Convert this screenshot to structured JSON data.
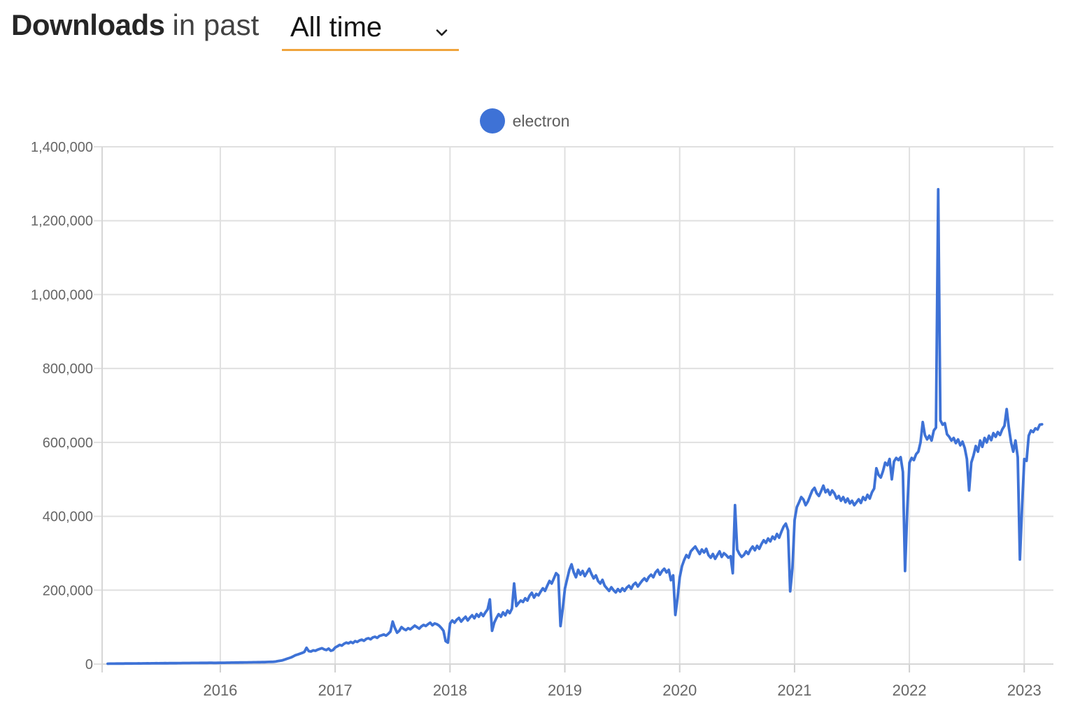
{
  "header": {
    "title": "Downloads",
    "subtitle": "in past",
    "range_select": {
      "value": "All time"
    }
  },
  "legend": {
    "items": [
      {
        "label": "electron",
        "color": "#3E72D6"
      }
    ]
  },
  "chart_data": {
    "type": "line",
    "title": "Downloads in past All time",
    "xlabel": "",
    "ylabel": "",
    "x_unit": "year (weekly npm download counts)",
    "grid": true,
    "legend_position": "top",
    "x_range": [
      2014.971,
      2023.254
    ],
    "y_range": [
      0,
      1400000
    ],
    "x_ticks": [
      2016,
      2017,
      2018,
      2019,
      2020,
      2021,
      2022,
      2023
    ],
    "x_tick_labels": [
      "2016",
      "2017",
      "2018",
      "2019",
      "2020",
      "2021",
      "2022",
      "2023"
    ],
    "y_ticks": [
      0,
      200000,
      400000,
      600000,
      800000,
      1000000,
      1200000,
      1400000
    ],
    "y_tick_labels": [
      "0",
      "200,000",
      "400,000",
      "600,000",
      "800,000",
      "1,000,000",
      "1,200,000",
      "1,400,000"
    ],
    "series": [
      {
        "name": "electron",
        "color": "#3E72D6",
        "x_start": 2015.02,
        "x_step": 0.0192308,
        "values": [
          1000,
          1100,
          1050,
          1200,
          1300,
          1250,
          1400,
          1350,
          1500,
          1450,
          1600,
          1550,
          1700,
          1650,
          1800,
          1750,
          1900,
          1850,
          2000,
          1950,
          2100,
          2050,
          2200,
          2150,
          2300,
          2250,
          2400,
          2350,
          2500,
          2450,
          2600,
          2550,
          2700,
          2650,
          2800,
          2750,
          2900,
          2850,
          3000,
          2950,
          3100,
          3050,
          3200,
          3150,
          3300,
          3250,
          3400,
          3350,
          3300,
          3200,
          3400,
          3400,
          3600,
          3500,
          3800,
          3700,
          4000,
          3900,
          4200,
          4100,
          4400,
          4300,
          4600,
          4500,
          4800,
          4700,
          5000,
          4900,
          5200,
          5100,
          5400,
          5300,
          5600,
          5800,
          6000,
          6300,
          6800,
          8000,
          9000,
          10000,
          12000,
          14000,
          16000,
          18000,
          21000,
          24000,
          26000,
          28000,
          30000,
          33000,
          44000,
          35000,
          34000,
          37000,
          36000,
          39000,
          41000,
          43000,
          40000,
          38000,
          42000,
          36000,
          38000,
          45000,
          48000,
          52000,
          50000,
          55000,
          58000,
          56000,
          60000,
          57000,
          62000,
          60000,
          64000,
          66000,
          63000,
          68000,
          70000,
          67000,
          72000,
          74000,
          71000,
          76000,
          78000,
          80000,
          77000,
          82000,
          88000,
          115000,
          98000,
          85000,
          90000,
          100000,
          95000,
          92000,
          97000,
          94000,
          99000,
          104000,
          100000,
          96000,
          102000,
          106000,
          103000,
          108000,
          112000,
          105000,
          110000,
          108000,
          104000,
          98000,
          90000,
          62000,
          58000,
          110000,
          118000,
          112000,
          120000,
          125000,
          115000,
          122000,
          128000,
          118000,
          126000,
          132000,
          124000,
          135000,
          128000,
          138000,
          130000,
          140000,
          148000,
          175000,
          90000,
          112000,
          125000,
          135000,
          128000,
          140000,
          132000,
          145000,
          138000,
          150000,
          218000,
          157000,
          165000,
          172000,
          168000,
          178000,
          172000,
          185000,
          193000,
          180000,
          190000,
          186000,
          196000,
          205000,
          198000,
          212000,
          225000,
          218000,
          232000,
          246000,
          240000,
          103000,
          150000,
          205000,
          230000,
          255000,
          270000,
          248000,
          235000,
          255000,
          242000,
          252000,
          238000,
          248000,
          258000,
          244000,
          232000,
          240000,
          225000,
          218000,
          228000,
          212000,
          205000,
          198000,
          208000,
          200000,
          194000,
          203000,
          196000,
          205000,
          198000,
          207000,
          212000,
          204000,
          215000,
          220000,
          210000,
          218000,
          226000,
          232000,
          225000,
          236000,
          242000,
          235000,
          248000,
          255000,
          242000,
          252000,
          258000,
          248000,
          255000,
          227000,
          240000,
          133000,
          180000,
          235000,
          265000,
          282000,
          295000,
          288000,
          305000,
          312000,
          318000,
          308000,
          298000,
          310000,
          302000,
          312000,
          295000,
          288000,
          298000,
          285000,
          295000,
          305000,
          290000,
          300000,
          295000,
          288000,
          292000,
          246000,
          430000,
          310000,
          298000,
          290000,
          295000,
          305000,
          298000,
          310000,
          318000,
          308000,
          320000,
          312000,
          325000,
          335000,
          328000,
          340000,
          332000,
          345000,
          338000,
          352000,
          342000,
          358000,
          372000,
          380000,
          362000,
          197000,
          260000,
          390000,
          425000,
          438000,
          452000,
          445000,
          430000,
          440000,
          455000,
          470000,
          477000,
          462000,
          455000,
          468000,
          483000,
          465000,
          472000,
          458000,
          470000,
          462000,
          448000,
          455000,
          442000,
          452000,
          438000,
          448000,
          435000,
          442000,
          430000,
          438000,
          446000,
          436000,
          452000,
          444000,
          458000,
          448000,
          465000,
          475000,
          530000,
          512000,
          505000,
          522000,
          545000,
          538000,
          555000,
          500000,
          548000,
          558000,
          552000,
          560000,
          520000,
          252000,
          420000,
          545000,
          558000,
          552000,
          568000,
          575000,
          600000,
          655000,
          620000,
          608000,
          618000,
          605000,
          632000,
          640000,
          1285000,
          660000,
          648000,
          652000,
          622000,
          615000,
          605000,
          612000,
          598000,
          608000,
          592000,
          602000,
          585000,
          555000,
          470000,
          545000,
          565000,
          590000,
          575000,
          605000,
          588000,
          612000,
          600000,
          618000,
          606000,
          625000,
          615000,
          628000,
          620000,
          635000,
          645000,
          690000,
          640000,
          600000,
          575000,
          605000,
          560000,
          283000,
          430000,
          555000,
          550000,
          618000,
          632000,
          628000,
          638000,
          635000,
          648000,
          649000
        ]
      }
    ]
  }
}
